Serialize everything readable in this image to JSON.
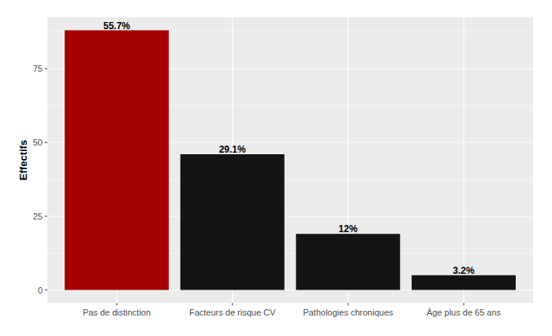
{
  "chart_data": {
    "type": "bar",
    "y_label": "Effectifs",
    "categories": [
      "Pas de distinction",
      "Facteurs de risque CV",
      "Pathologies chroniques",
      "Âge plus de 65 ans"
    ],
    "values": [
      88,
      46,
      19,
      5
    ],
    "annotations": [
      "55.7%",
      "29.1%",
      "12%",
      "3.2%"
    ],
    "colors": [
      "#a50000",
      "#141414",
      "#141414",
      "#141414"
    ],
    "ylim": [
      -4.4,
      92.4
    ],
    "yticks": [
      0,
      25,
      50,
      75
    ],
    "grid": true
  }
}
